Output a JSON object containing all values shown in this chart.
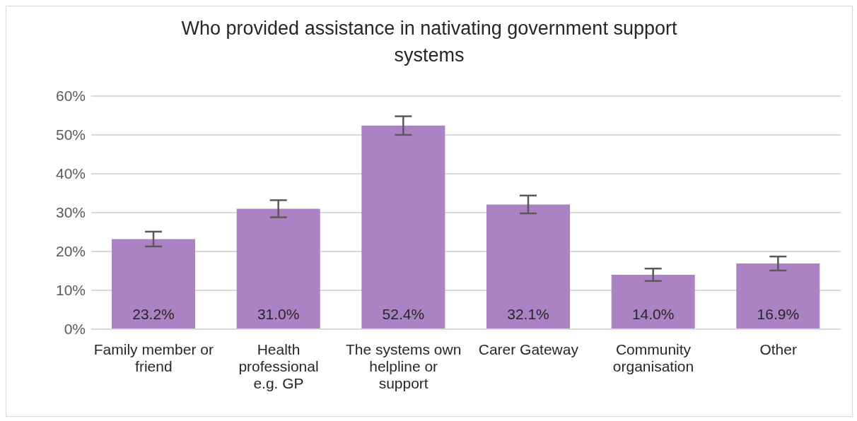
{
  "chart_data": {
    "type": "bar",
    "title": "Who provided assistance in nativating government support systems",
    "categories": [
      "Family member or friend",
      "Health professional e.g. GP",
      "The systems own helpline or support",
      "Carer Gateway",
      "Community organisation",
      "Other"
    ],
    "values": [
      23.2,
      31.0,
      52.4,
      32.1,
      14.0,
      16.9
    ],
    "errors": [
      1.9,
      2.2,
      2.4,
      2.3,
      1.6,
      1.8
    ],
    "value_labels": [
      "23.2%",
      "31.0%",
      "52.4%",
      "32.1%",
      "14.0%",
      "16.9%"
    ],
    "color": "#ab83c5",
    "ylim": [
      0,
      60
    ],
    "yticks": [
      {
        "value": 0,
        "label": "0%"
      },
      {
        "value": 10,
        "label": "10%"
      },
      {
        "value": 20,
        "label": "20%"
      },
      {
        "value": 30,
        "label": "30%"
      },
      {
        "value": 40,
        "label": "40%"
      },
      {
        "value": 50,
        "label": "50%"
      },
      {
        "value": 60,
        "label": "60%"
      }
    ],
    "grid": "y",
    "legend": false
  }
}
